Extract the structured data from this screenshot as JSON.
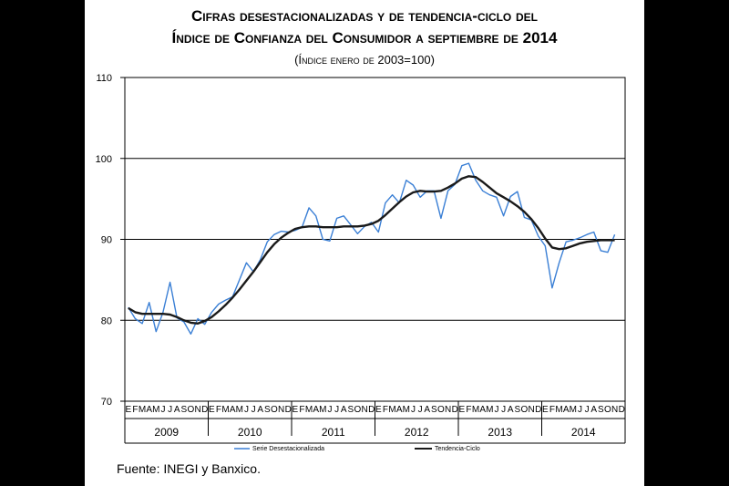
{
  "title_line1": "Cifras desestacionalizadas y de tendencia-ciclo del",
  "title_line2": "Índice de Confianza del Consumidor a septiembre de 2014",
  "title_line3": "(Índice enero de 2003=100)",
  "source": "Fuente: INEGI y Banxico.",
  "colors": {
    "series": "#3a7fd5",
    "trend": "#1a1a1a",
    "grid": "#000000"
  },
  "chart_data": {
    "type": "line",
    "ylim": [
      70,
      110
    ],
    "yticks": [
      "70",
      "80",
      "90",
      "100",
      "110"
    ],
    "grid": "horizontal",
    "legend_position": "bottom",
    "month_letters": [
      "E",
      "F",
      "M",
      "A",
      "M",
      "J",
      "J",
      "A",
      "S",
      "O",
      "N",
      "D"
    ],
    "years": [
      "2009",
      "2010",
      "2011",
      "2012",
      "2013",
      "2014"
    ],
    "x_start": "2009-01",
    "series": [
      {
        "name": "Serie Desestacionalizada",
        "values": [
          81.6,
          80.2,
          79.6,
          82.2,
          78.6,
          81.0,
          84.7,
          80.3,
          79.8,
          78.3,
          80.2,
          79.5,
          81.0,
          82.0,
          82.5,
          82.9,
          85.0,
          87.1,
          86.0,
          87.5,
          89.7,
          90.6,
          91.0,
          90.9,
          91.1,
          91.5,
          93.9,
          92.9,
          90.0,
          89.8,
          92.6,
          92.9,
          91.8,
          90.7,
          91.6,
          92.1,
          90.9,
          94.5,
          95.5,
          94.5,
          97.3,
          96.7,
          95.2,
          96.0,
          96.0,
          92.6,
          96.0,
          96.8,
          99.1,
          99.4,
          97.3,
          96.0,
          95.5,
          95.2,
          92.9,
          95.3,
          95.9,
          92.7,
          92.4,
          90.4,
          89.2,
          84.0,
          87.1,
          89.7,
          89.9,
          90.2,
          90.6,
          90.9,
          88.6,
          88.4,
          90.6
        ],
        "color": "#3a7fd5"
      },
      {
        "name": "Tendencia-Ciclo",
        "values": [
          81.5,
          81.0,
          80.8,
          80.8,
          80.8,
          80.8,
          80.7,
          80.4,
          80.0,
          79.7,
          79.6,
          79.9,
          80.4,
          81.1,
          81.9,
          82.8,
          83.8,
          84.9,
          86.0,
          87.2,
          88.4,
          89.4,
          90.2,
          90.8,
          91.3,
          91.5,
          91.6,
          91.6,
          91.5,
          91.5,
          91.5,
          91.6,
          91.6,
          91.6,
          91.7,
          91.9,
          92.3,
          93.0,
          93.8,
          94.6,
          95.3,
          95.8,
          96.0,
          95.9,
          95.9,
          96.0,
          96.4,
          96.9,
          97.5,
          97.8,
          97.7,
          97.1,
          96.4,
          95.7,
          95.2,
          94.7,
          94.1,
          93.4,
          92.5,
          91.4,
          90.1,
          89.0,
          88.8,
          88.9,
          89.2,
          89.5,
          89.7,
          89.8,
          89.9,
          89.9,
          89.9
        ],
        "color": "#1a1a1a"
      }
    ]
  }
}
